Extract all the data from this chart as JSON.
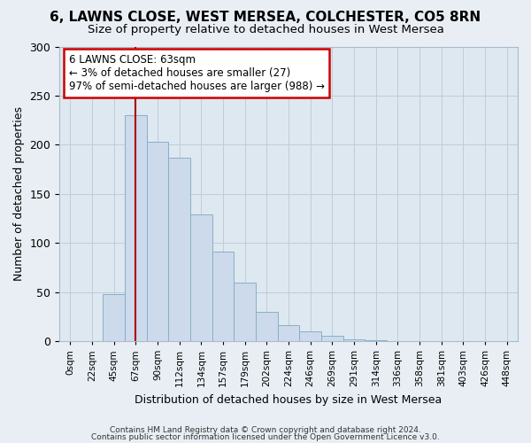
{
  "title": "6, LAWNS CLOSE, WEST MERSEA, COLCHESTER, CO5 8RN",
  "subtitle": "Size of property relative to detached houses in West Mersea",
  "xlabel": "Distribution of detached houses by size in West Mersea",
  "ylabel": "Number of detached properties",
  "footnote1": "Contains HM Land Registry data © Crown copyright and database right 2024.",
  "footnote2": "Contains public sector information licensed under the Open Government Licence v3.0.",
  "bar_labels": [
    "0sqm",
    "22sqm",
    "45sqm",
    "67sqm",
    "90sqm",
    "112sqm",
    "134sqm",
    "157sqm",
    "179sqm",
    "202sqm",
    "224sqm",
    "246sqm",
    "269sqm",
    "291sqm",
    "314sqm",
    "336sqm",
    "358sqm",
    "381sqm",
    "403sqm",
    "426sqm",
    "448sqm"
  ],
  "bar_values": [
    0,
    0,
    48,
    230,
    203,
    187,
    129,
    91,
    60,
    30,
    16,
    10,
    5,
    2,
    1,
    0,
    0,
    0,
    0,
    0,
    0
  ],
  "bar_color": "#ccdaeb",
  "bar_edge_color": "#8aaec8",
  "ylim": [
    0,
    300
  ],
  "yticks": [
    0,
    50,
    100,
    150,
    200,
    250,
    300
  ],
  "vline_color": "#aa0000",
  "annotation_title": "6 LAWNS CLOSE: 63sqm",
  "annotation_line1": "← 3% of detached houses are smaller (27)",
  "annotation_line2": "97% of semi-detached houses are larger (988) →",
  "annotation_box_color": "#cc0000",
  "bg_color": "#e8eef4",
  "plot_bg_color": "#dde8f0",
  "grid_color": "#c0ccd8",
  "title_fontsize": 11,
  "subtitle_fontsize": 9.5
}
